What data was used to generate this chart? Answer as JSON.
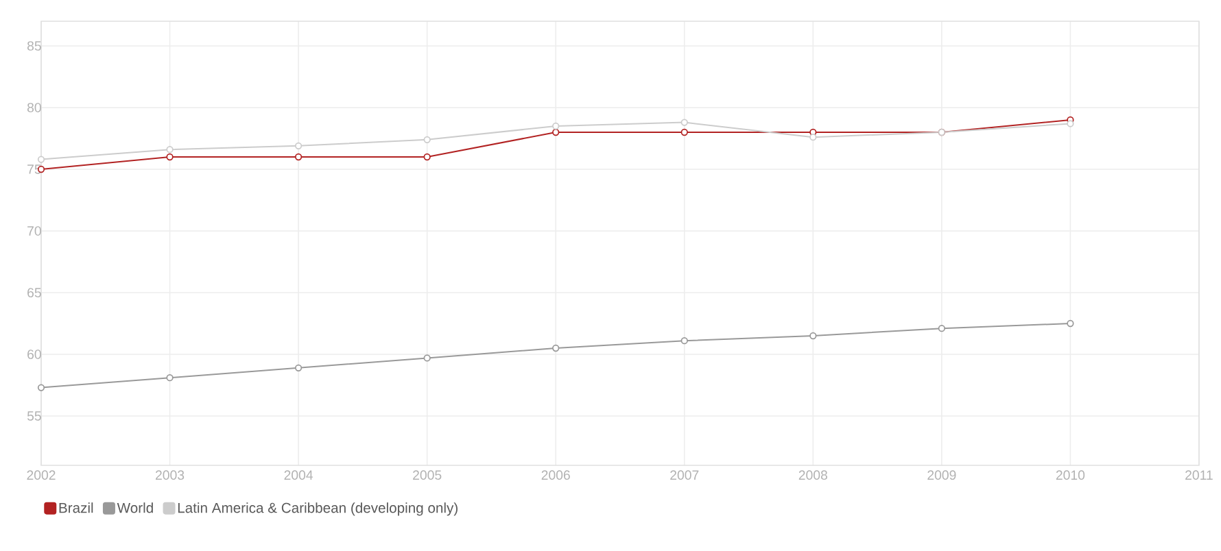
{
  "chart_data": {
    "type": "line",
    "x": [
      2002,
      2003,
      2004,
      2005,
      2006,
      2007,
      2008,
      2009,
      2010
    ],
    "series": [
      {
        "name": "Brazil",
        "color": "#b22222",
        "values": [
          75,
          76,
          76,
          76,
          78,
          78,
          78,
          78,
          79
        ]
      },
      {
        "name": "World",
        "color": "#999999",
        "values": [
          57.3,
          58.1,
          58.9,
          59.7,
          60.5,
          61.1,
          61.5,
          62.1,
          62.5
        ]
      },
      {
        "name": "Latin America & Caribbean (developing only)",
        "color": "#cccccc",
        "values": [
          75.8,
          76.6,
          76.9,
          77.4,
          78.5,
          78.8,
          77.6,
          78.0,
          78.7
        ]
      }
    ],
    "xlim": [
      2002,
      2011
    ],
    "xticks": [
      2002,
      2003,
      2004,
      2005,
      2006,
      2007,
      2008,
      2009,
      2010,
      2011
    ],
    "ylim": [
      51,
      87
    ],
    "yticks": [
      55,
      60,
      65,
      70,
      75,
      80,
      85
    ],
    "grid": true,
    "legend": "bottom left",
    "marker": "circle",
    "line_style": "solid"
  }
}
